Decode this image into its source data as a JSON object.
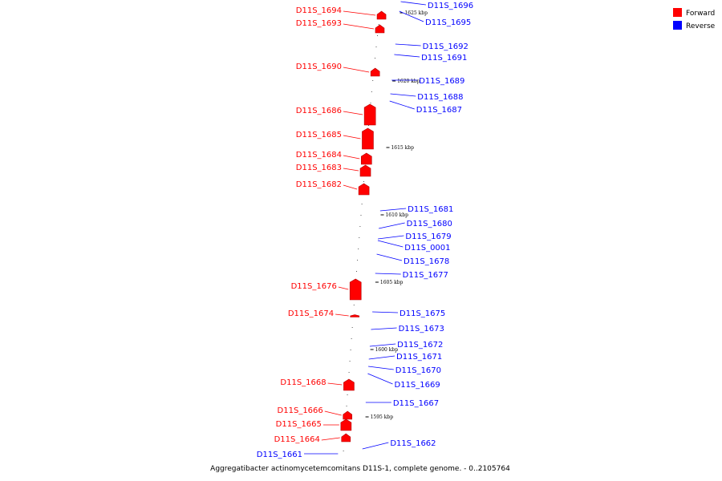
{
  "caption": "Aggregatibacter actinomycetemcomitans D11S-1, complete genome. - 0..2105764",
  "legend": [
    {
      "label": "Forward",
      "color": "#ff0000"
    },
    {
      "label": "Reverse",
      "color": "#0000ff"
    }
  ],
  "colors": {
    "forward": "#ff0000",
    "reverse": "#0000ff",
    "backbone": "#888888"
  },
  "ticks": [
    "1625 kbp",
    "1620 kbp",
    "1615 kbp",
    "1610 kbp",
    "1605 kbp",
    "1600 kbp",
    "1595 kbp"
  ],
  "forward_genes": [
    {
      "label": "D11S_1694",
      "size": "s"
    },
    {
      "label": "D11S_1693",
      "size": "s"
    },
    {
      "label": "D11S_1690",
      "size": "s"
    },
    {
      "label": "D11S_1686",
      "size": "l"
    },
    {
      "label": "D11S_1685",
      "size": "l"
    },
    {
      "label": "D11S_1684",
      "size": "m"
    },
    {
      "label": "D11S_1683",
      "size": "m"
    },
    {
      "label": "D11S_1682",
      "size": "m"
    },
    {
      "label": "D11S_1676",
      "size": "l"
    },
    {
      "label": "D11S_1674",
      "size": "t"
    },
    {
      "label": "D11S_1668",
      "size": "m"
    },
    {
      "label": "D11S_1666",
      "size": "s"
    },
    {
      "label": "D11S_1665",
      "size": "m"
    },
    {
      "label": "D11S_1664",
      "size": "s"
    }
  ],
  "reverse_genes": [
    "D11S_1696",
    "D11S_1695",
    "D11S_1692",
    "D11S_1691",
    "D11S_1689",
    "D11S_1688",
    "D11S_1687",
    "D11S_1681",
    "D11S_1680",
    "D11S_1679",
    "D11S_0001",
    "D11S_1678",
    "D11S_1677",
    "D11S_1675",
    "D11S_1673",
    "D11S_1672",
    "D11S_1671",
    "D11S_1670",
    "D11S_1669",
    "D11S_1667",
    "D11S_1662",
    "D11S_1661"
  ]
}
